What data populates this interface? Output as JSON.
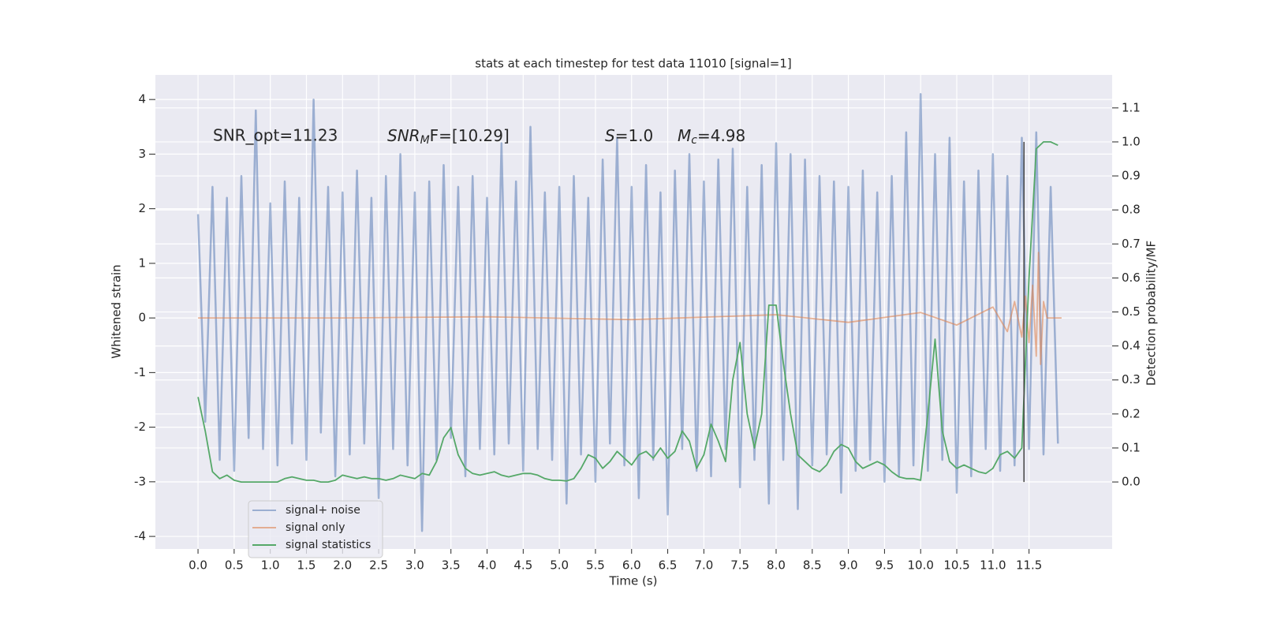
{
  "chart_data": {
    "type": "line",
    "title": "stats at each timestep for test data 11010 [signal=1]",
    "xlabel": "Time (s)",
    "ylabel": "Whitened strain",
    "y2label": "Detection probability/MF",
    "xlim": [
      -0.59,
      12.65
    ],
    "ylim": [
      -4.23,
      4.45
    ],
    "y2lim": [
      -0.197,
      1.197
    ],
    "grid": true,
    "legend": "lower left",
    "xticks": [
      {
        "value": 0,
        "label": "0.0"
      },
      0.5,
      {
        "value": 1,
        "label": "1.0"
      },
      1.5,
      {
        "value": 2,
        "label": "2.0"
      },
      2.5,
      {
        "value": 3,
        "label": "3.0"
      },
      3.5,
      {
        "value": 4,
        "label": "4.0"
      },
      4.5,
      {
        "value": 5,
        "label": "5.0"
      },
      5.5,
      {
        "value": 6,
        "label": "6.0"
      },
      6.5,
      {
        "value": 7,
        "label": "7.0"
      },
      7.5,
      {
        "value": 8,
        "label": "8.0"
      },
      8.5,
      {
        "value": 9,
        "label": "9.0"
      },
      9.5,
      {
        "value": 10,
        "label": "10.0"
      },
      10.5,
      {
        "value": 11,
        "label": "11.0"
      },
      11.5
    ],
    "yticks": [
      -4,
      -3,
      -2,
      -1,
      0,
      1,
      2,
      3,
      4
    ],
    "y2ticks": [
      {
        "value": 0,
        "label": "0.0"
      },
      0.1,
      0.2,
      0.3,
      0.4,
      0.5,
      0.6,
      0.7,
      0.8,
      0.9,
      {
        "value": 1,
        "label": "1.0"
      },
      1.1
    ],
    "x": [
      0.0,
      0.1,
      0.2,
      0.3,
      0.4,
      0.5,
      0.6,
      0.7,
      0.8,
      0.9,
      1.0,
      1.1,
      1.2,
      1.3,
      1.4,
      1.5,
      1.6,
      1.7,
      1.8,
      1.9,
      2.0,
      2.1,
      2.2,
      2.3,
      2.4,
      2.5,
      2.6,
      2.7,
      2.8,
      2.9,
      3.0,
      3.1,
      3.2,
      3.3,
      3.4,
      3.5,
      3.6,
      3.7,
      3.8,
      3.9,
      4.0,
      4.1,
      4.2,
      4.3,
      4.4,
      4.5,
      4.6,
      4.7,
      4.8,
      4.9,
      5.0,
      5.1,
      5.2,
      5.3,
      5.4,
      5.5,
      5.6,
      5.7,
      5.8,
      5.9,
      6.0,
      6.1,
      6.2,
      6.3,
      6.4,
      6.5,
      6.6,
      6.7,
      6.8,
      6.9,
      7.0,
      7.1,
      7.2,
      7.3,
      7.4,
      7.5,
      7.6,
      7.7,
      7.8,
      7.9,
      8.0,
      8.1,
      8.2,
      8.3,
      8.4,
      8.5,
      8.6,
      8.7,
      8.8,
      8.9,
      9.0,
      9.1,
      9.2,
      9.3,
      9.4,
      9.5,
      9.6,
      9.7,
      9.8,
      9.9,
      10.0,
      10.1,
      10.2,
      10.3,
      10.4,
      10.5,
      10.6,
      10.7,
      10.8,
      10.9,
      11.0,
      11.1,
      11.2,
      11.3,
      11.4,
      11.5,
      11.6,
      11.7,
      11.8,
      11.9
    ],
    "series": [
      {
        "name": "signal+ noise",
        "color": "#4c72b0",
        "values": [
          1.9,
          -1.9,
          2.4,
          -2.6,
          2.2,
          -2.8,
          2.6,
          -2.2,
          3.8,
          -2.4,
          2.1,
          -2.7,
          2.5,
          -2.3,
          2.2,
          -2.6,
          4.0,
          -2.1,
          2.4,
          -2.9,
          2.3,
          -2.5,
          2.7,
          -2.3,
          2.2,
          -3.3,
          2.6,
          -2.4,
          3.0,
          -2.7,
          2.3,
          -3.9,
          2.5,
          -2.6,
          2.8,
          -2.2,
          2.4,
          -2.9,
          2.6,
          -2.4,
          2.2,
          -2.5,
          3.2,
          -2.3,
          2.5,
          -2.8,
          3.5,
          -2.4,
          2.3,
          -2.6,
          2.4,
          -3.4,
          2.6,
          -2.5,
          2.2,
          -3.0,
          2.9,
          -2.3,
          3.3,
          -2.7,
          2.4,
          -3.3,
          2.8,
          -2.6,
          2.3,
          -3.6,
          2.7,
          -2.4,
          3.0,
          -2.8,
          2.5,
          -2.9,
          2.9,
          -2.4,
          3.1,
          -3.1,
          2.4,
          -2.6,
          2.8,
          -3.4,
          3.2,
          -2.6,
          3.0,
          -3.5,
          2.9,
          -2.7,
          2.6,
          -2.5,
          2.5,
          -3.2,
          2.4,
          -2.8,
          2.7,
          -2.6,
          2.3,
          -3.0,
          2.6,
          -2.9,
          3.4,
          -2.7,
          4.1,
          -2.8,
          3.0,
          -2.6,
          3.3,
          -3.2,
          2.5,
          -2.9,
          2.7,
          -2.4,
          3.0,
          -2.8,
          2.6,
          -2.7,
          3.3,
          -2.4,
          3.4,
          -2.5,
          2.4,
          -2.3
        ]
      },
      {
        "name": "signal only",
        "color": "#dd8452",
        "x": [
          0,
          2,
          4,
          6,
          8,
          9,
          10,
          10.5,
          11,
          11.2,
          11.3,
          11.4,
          11.45,
          11.5,
          11.55,
          11.6,
          11.63,
          11.66,
          11.7,
          11.75,
          11.95
        ],
        "values": [
          0,
          0,
          0.02,
          -0.03,
          0.06,
          -0.08,
          0.1,
          -0.13,
          0.2,
          -0.25,
          0.3,
          -0.35,
          0.4,
          -0.45,
          0.6,
          -0.7,
          1.2,
          -0.85,
          0.3,
          0,
          0
        ]
      },
      {
        "name": "signal statistics",
        "color": "#55a868",
        "axis": "y2",
        "values": [
          0.25,
          0.15,
          0.03,
          0.01,
          0.02,
          0.005,
          0.0,
          0.0,
          0.0,
          0.0,
          0.0,
          0.0,
          0.01,
          0.015,
          0.01,
          0.005,
          0.005,
          0.0,
          0.0,
          0.005,
          0.02,
          0.015,
          0.01,
          0.015,
          0.01,
          0.01,
          0.005,
          0.01,
          0.02,
          0.015,
          0.01,
          0.025,
          0.02,
          0.06,
          0.13,
          0.16,
          0.08,
          0.04,
          0.025,
          0.02,
          0.025,
          0.03,
          0.02,
          0.015,
          0.02,
          0.025,
          0.025,
          0.02,
          0.01,
          0.005,
          0.005,
          0.003,
          0.01,
          0.04,
          0.08,
          0.07,
          0.04,
          0.06,
          0.09,
          0.07,
          0.05,
          0.08,
          0.09,
          0.07,
          0.1,
          0.07,
          0.09,
          0.15,
          0.12,
          0.04,
          0.08,
          0.17,
          0.12,
          0.06,
          0.3,
          0.41,
          0.2,
          0.1,
          0.2,
          0.52,
          0.52,
          0.35,
          0.2,
          0.08,
          0.06,
          0.04,
          0.03,
          0.05,
          0.09,
          0.11,
          0.1,
          0.06,
          0.04,
          0.05,
          0.06,
          0.05,
          0.03,
          0.015,
          0.01,
          0.01,
          0.005,
          0.2,
          0.42,
          0.15,
          0.06,
          0.04,
          0.05,
          0.04,
          0.03,
          0.025,
          0.04,
          0.08,
          0.09,
          0.07,
          0.1,
          0.6,
          0.98,
          1.0,
          1.0,
          0.99
        ]
      }
    ],
    "vline": {
      "x": 11.43,
      "axis": "y2",
      "ymin": 0,
      "ymax": 1,
      "color": "#444444"
    },
    "annotations": [
      {
        "text": "SNR_opt=11.23"
      },
      {
        "base": "SNR",
        "sub": "M",
        "rest": "F=[10.29]"
      },
      {
        "base": "S",
        "rest": "=1.0"
      },
      {
        "base": "M",
        "sub": "c",
        "rest": "=4.98"
      }
    ]
  }
}
